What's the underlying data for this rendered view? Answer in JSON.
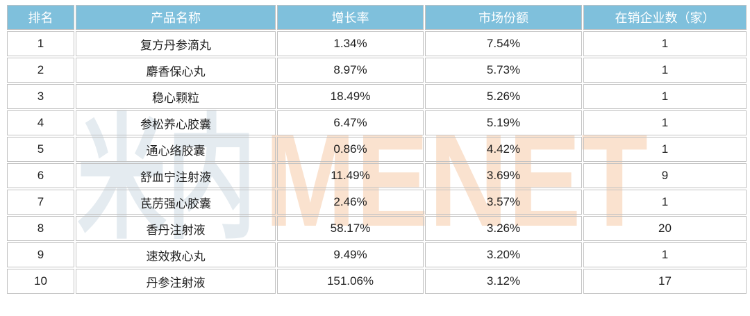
{
  "watermark": {
    "cjk_text": "米内",
    "latin_text": "MENET",
    "cjk_color": "#e4ebf0",
    "latin_color": "#fae2cf"
  },
  "colors": {
    "header_bg": "#7fc0dc",
    "header_text": "#ffffff",
    "grid_border": "#c2c2c2",
    "body_text": "#1f1f1f"
  },
  "chart_data": {
    "type": "table",
    "columns": [
      "排名",
      "产品名称",
      "增长率",
      "市场份额",
      "在销企业数（家）"
    ],
    "rows": [
      [
        "1",
        "复方丹参滴丸",
        "1.34%",
        "7.54%",
        "1"
      ],
      [
        "2",
        "麝香保心丸",
        "8.97%",
        "5.73%",
        "1"
      ],
      [
        "3",
        "稳心颗粒",
        "18.49%",
        "5.26%",
        "1"
      ],
      [
        "4",
        "参松养心胶囊",
        "6.47%",
        "5.19%",
        "1"
      ],
      [
        "5",
        "通心络胶囊",
        "0.86%",
        "4.42%",
        "1"
      ],
      [
        "6",
        "舒血宁注射液",
        "11.49%",
        "3.69%",
        "9"
      ],
      [
        "7",
        "芪苈强心胶囊",
        "2.46%",
        "3.57%",
        "1"
      ],
      [
        "8",
        "香丹注射液",
        "58.17%",
        "3.26%",
        "20"
      ],
      [
        "9",
        "速效救心丸",
        "9.49%",
        "3.20%",
        "1"
      ],
      [
        "10",
        "丹参注射液",
        "151.06%",
        "3.12%",
        "17"
      ]
    ],
    "column_keys": [
      "rank",
      "product-name",
      "growth-rate",
      "market-share",
      "company-count"
    ]
  }
}
